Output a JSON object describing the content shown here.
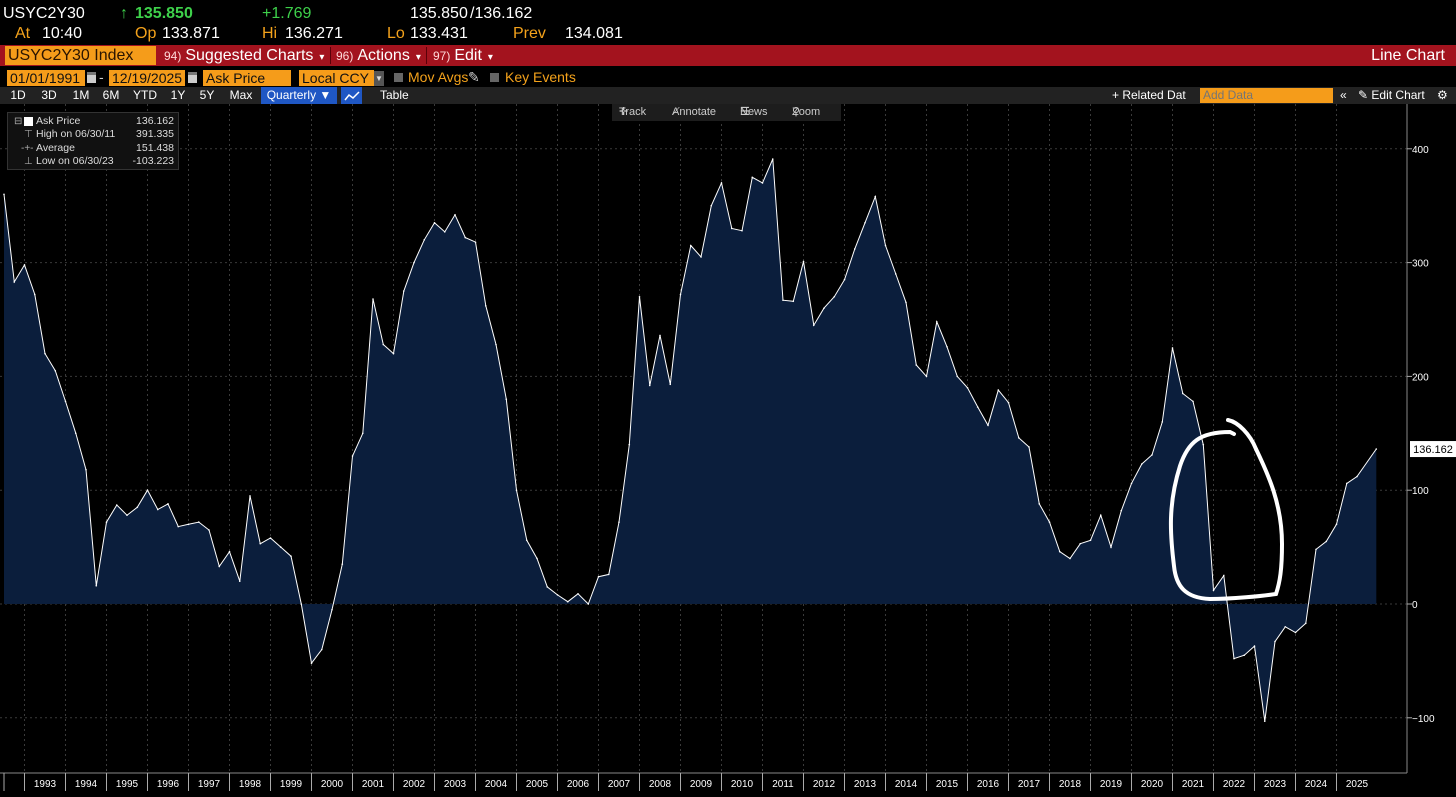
{
  "quote": {
    "ticker": "USYC2Y30",
    "last_arrow": "↑",
    "last": "135.850",
    "change": "+1.769",
    "bid": "135.850",
    "ask": "/136.162",
    "at_label": "At",
    "time": "10:40",
    "op_label": "Op",
    "open": "133.871",
    "hi_label": "Hi",
    "high": "136.271",
    "lo_label": "Lo",
    "low": "133.431",
    "prev_label": "Prev",
    "prev": "134.081"
  },
  "menubar": {
    "security": "USYC2Y30 Index",
    "suggested_num": "94)",
    "suggested": "Suggested Charts",
    "actions_num": "96)",
    "actions": "Actions",
    "edit_num": "97)",
    "edit": "Edit",
    "chart_type": "Line Chart"
  },
  "controls": {
    "start_date": "01/01/1991",
    "end_date": "12/19/2025",
    "field": "Ask Price",
    "currency": "Local CCY",
    "mov_avgs": "Mov Avgs",
    "key_events": "Key Events",
    "ranges": [
      "1D",
      "3D",
      "1M",
      "6M",
      "YTD",
      "1Y",
      "5Y",
      "Max"
    ],
    "frequency": "Quarterly ▼",
    "table": "Table",
    "related": "+ Related Dat",
    "add_data_placeholder": "Add Data",
    "collapse": "«",
    "edit_chart": "Edit Chart",
    "settings_icon": "gear-icon"
  },
  "toolbar": {
    "track": "Track",
    "annotate": "Annotate",
    "news": "News",
    "zoom": "Zoom"
  },
  "legend": {
    "ask_label": "Ask Price",
    "ask_value": "136.162",
    "high_label": "High on 06/30/11",
    "high_value": "391.335",
    "avg_label": "Average",
    "avg_value": "151.438",
    "low_label": "Low on 06/30/23",
    "low_value": "-103.223"
  },
  "chart_data": {
    "type": "area",
    "title": "",
    "xlabel": "",
    "ylabel": "",
    "ylim": [
      -150,
      430
    ],
    "yticks": [
      400,
      300,
      200,
      100,
      0,
      -100
    ],
    "x_tick_labels": [
      "1993",
      "1994",
      "1995",
      "1996",
      "1997",
      "1998",
      "1999",
      "2000",
      "2001",
      "2002",
      "2003",
      "2004",
      "2005",
      "2006",
      "2007",
      "2008",
      "2009",
      "2010",
      "2011",
      "2012",
      "2013",
      "2014",
      "2015",
      "2016",
      "2017",
      "2018",
      "2019",
      "2020",
      "2021",
      "2022",
      "2023",
      "2024",
      "2025"
    ],
    "last_value_label": "136.162",
    "grid": true,
    "colors": {
      "fill": "#0b1e3c",
      "line": "#ffffff",
      "grid": "#3a3a3a",
      "annotation": "#ffffff"
    },
    "series": [
      {
        "values": [
          {
            "x": "1992.50",
            "y": 360
          },
          {
            "x": "1992.75",
            "y": 283
          },
          {
            "x": "1993.00",
            "y": 298
          },
          {
            "x": "1993.25",
            "y": 272
          },
          {
            "x": "1993.50",
            "y": 220
          },
          {
            "x": "1993.75",
            "y": 205
          },
          {
            "x": "1994.00",
            "y": 178
          },
          {
            "x": "1994.25",
            "y": 150
          },
          {
            "x": "1994.50",
            "y": 118
          },
          {
            "x": "1994.75",
            "y": 16
          },
          {
            "x": "1995.00",
            "y": 72
          },
          {
            "x": "1995.25",
            "y": 87
          },
          {
            "x": "1995.50",
            "y": 78
          },
          {
            "x": "1995.75",
            "y": 85
          },
          {
            "x": "1996.00",
            "y": 100
          },
          {
            "x": "1996.25",
            "y": 83
          },
          {
            "x": "1996.50",
            "y": 88
          },
          {
            "x": "1996.75",
            "y": 68
          },
          {
            "x": "1997.00",
            "y": 70
          },
          {
            "x": "1997.25",
            "y": 72
          },
          {
            "x": "1997.50",
            "y": 65
          },
          {
            "x": "1997.75",
            "y": 33
          },
          {
            "x": "1998.00",
            "y": 46
          },
          {
            "x": "1998.25",
            "y": 20
          },
          {
            "x": "1998.50",
            "y": 95
          },
          {
            "x": "1998.75",
            "y": 53
          },
          {
            "x": "1999.00",
            "y": 58
          },
          {
            "x": "1999.25",
            "y": 50
          },
          {
            "x": "1999.50",
            "y": 42
          },
          {
            "x": "1999.75",
            "y": 0
          },
          {
            "x": "2000.00",
            "y": -52
          },
          {
            "x": "2000.25",
            "y": -40
          },
          {
            "x": "2000.50",
            "y": -5
          },
          {
            "x": "2000.75",
            "y": 35
          },
          {
            "x": "2001.00",
            "y": 130
          },
          {
            "x": "2001.25",
            "y": 150
          },
          {
            "x": "2001.50",
            "y": 268
          },
          {
            "x": "2001.75",
            "y": 228
          },
          {
            "x": "2002.00",
            "y": 220
          },
          {
            "x": "2002.25",
            "y": 275
          },
          {
            "x": "2002.50",
            "y": 300
          },
          {
            "x": "2002.75",
            "y": 320
          },
          {
            "x": "2003.00",
            "y": 335
          },
          {
            "x": "2003.25",
            "y": 327
          },
          {
            "x": "2003.50",
            "y": 342
          },
          {
            "x": "2003.75",
            "y": 322
          },
          {
            "x": "2004.00",
            "y": 318
          },
          {
            "x": "2004.25",
            "y": 262
          },
          {
            "x": "2004.50",
            "y": 228
          },
          {
            "x": "2004.75",
            "y": 180
          },
          {
            "x": "2005.00",
            "y": 100
          },
          {
            "x": "2005.25",
            "y": 56
          },
          {
            "x": "2005.50",
            "y": 40
          },
          {
            "x": "2005.75",
            "y": 15
          },
          {
            "x": "2006.00",
            "y": 8
          },
          {
            "x": "2006.25",
            "y": 2
          },
          {
            "x": "2006.50",
            "y": 9
          },
          {
            "x": "2006.75",
            "y": 0
          },
          {
            "x": "2007.00",
            "y": 24
          },
          {
            "x": "2007.25",
            "y": 26
          },
          {
            "x": "2007.50",
            "y": 72
          },
          {
            "x": "2007.75",
            "y": 140
          },
          {
            "x": "2008.00",
            "y": 270
          },
          {
            "x": "2008.25",
            "y": 192
          },
          {
            "x": "2008.50",
            "y": 236
          },
          {
            "x": "2008.75",
            "y": 193
          },
          {
            "x": "2009.00",
            "y": 272
          },
          {
            "x": "2009.25",
            "y": 315
          },
          {
            "x": "2009.50",
            "y": 305
          },
          {
            "x": "2009.75",
            "y": 350
          },
          {
            "x": "2010.00",
            "y": 370
          },
          {
            "x": "2010.25",
            "y": 330
          },
          {
            "x": "2010.50",
            "y": 328
          },
          {
            "x": "2010.75",
            "y": 375
          },
          {
            "x": "2011.00",
            "y": 370
          },
          {
            "x": "2011.25",
            "y": 391
          },
          {
            "x": "2011.50",
            "y": 267
          },
          {
            "x": "2011.75",
            "y": 266
          },
          {
            "x": "2012.00",
            "y": 301
          },
          {
            "x": "2012.25",
            "y": 245
          },
          {
            "x": "2012.50",
            "y": 260
          },
          {
            "x": "2012.75",
            "y": 270
          },
          {
            "x": "2013.00",
            "y": 285
          },
          {
            "x": "2013.25",
            "y": 312
          },
          {
            "x": "2013.50",
            "y": 335
          },
          {
            "x": "2013.75",
            "y": 358
          },
          {
            "x": "2014.00",
            "y": 315
          },
          {
            "x": "2014.25",
            "y": 290
          },
          {
            "x": "2014.50",
            "y": 265
          },
          {
            "x": "2014.75",
            "y": 210
          },
          {
            "x": "2015.00",
            "y": 200
          },
          {
            "x": "2015.25",
            "y": 248
          },
          {
            "x": "2015.50",
            "y": 226
          },
          {
            "x": "2015.75",
            "y": 200
          },
          {
            "x": "2016.00",
            "y": 190
          },
          {
            "x": "2016.25",
            "y": 173
          },
          {
            "x": "2016.50",
            "y": 157
          },
          {
            "x": "2016.75",
            "y": 188
          },
          {
            "x": "2017.00",
            "y": 177
          },
          {
            "x": "2017.25",
            "y": 146
          },
          {
            "x": "2017.50",
            "y": 138
          },
          {
            "x": "2017.75",
            "y": 88
          },
          {
            "x": "2018.00",
            "y": 72
          },
          {
            "x": "2018.25",
            "y": 46
          },
          {
            "x": "2018.50",
            "y": 40
          },
          {
            "x": "2018.75",
            "y": 53
          },
          {
            "x": "2019.00",
            "y": 56
          },
          {
            "x": "2019.25",
            "y": 78
          },
          {
            "x": "2019.50",
            "y": 50
          },
          {
            "x": "2019.75",
            "y": 82
          },
          {
            "x": "2020.00",
            "y": 106
          },
          {
            "x": "2020.25",
            "y": 123
          },
          {
            "x": "2020.50",
            "y": 131
          },
          {
            "x": "2020.75",
            "y": 160
          },
          {
            "x": "2021.00",
            "y": 225
          },
          {
            "x": "2021.25",
            "y": 185
          },
          {
            "x": "2021.50",
            "y": 178
          },
          {
            "x": "2021.75",
            "y": 140
          },
          {
            "x": "2022.00",
            "y": 12
          },
          {
            "x": "2022.25",
            "y": 25
          },
          {
            "x": "2022.50",
            "y": -48
          },
          {
            "x": "2022.75",
            "y": -45
          },
          {
            "x": "2023.00",
            "y": -37
          },
          {
            "x": "2023.25",
            "y": -103
          },
          {
            "x": "2023.50",
            "y": -33
          },
          {
            "x": "2023.75",
            "y": -20
          },
          {
            "x": "2024.00",
            "y": -25
          },
          {
            "x": "2024.25",
            "y": -17
          },
          {
            "x": "2024.50",
            "y": 48
          },
          {
            "x": "2024.75",
            "y": 55
          },
          {
            "x": "2025.00",
            "y": 70
          },
          {
            "x": "2025.25",
            "y": 106
          },
          {
            "x": "2025.50",
            "y": 112
          },
          {
            "x": "2025.97",
            "y": 136.162
          }
        ]
      }
    ]
  }
}
